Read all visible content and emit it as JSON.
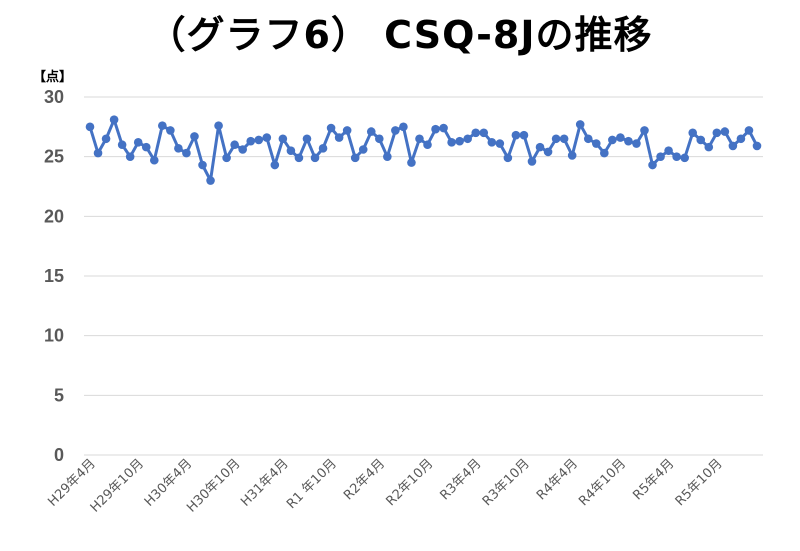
{
  "chart_data": {
    "type": "line",
    "title": "（グラフ6） CSQ-8Jの推移",
    "unit_label": "【点】",
    "xlabel": "",
    "ylabel": "",
    "ylim": [
      0,
      30
    ],
    "yticks": [
      0,
      5,
      10,
      15,
      20,
      25,
      30
    ],
    "grid": true,
    "legend": "none",
    "categories": [
      "H29年4月",
      "",
      "",
      "",
      "",
      "",
      "H29年10月",
      "",
      "",
      "",
      "",
      "",
      "H30年4月",
      "",
      "",
      "",
      "",
      "",
      "H30年10月",
      "",
      "",
      "",
      "",
      "",
      "H31年4月",
      "",
      "",
      "",
      "",
      "",
      "R1 年10月",
      "",
      "",
      "",
      "",
      "",
      "R2年4月",
      "",
      "",
      "",
      "",
      "",
      "R2年10月",
      "",
      "",
      "",
      "",
      "",
      "R3年4月",
      "",
      "",
      "",
      "",
      "",
      "R3年10月",
      "",
      "",
      "",
      "",
      "",
      "R4年4月",
      "",
      "",
      "",
      "",
      "",
      "R4年10月",
      "",
      "",
      "",
      "",
      "",
      "R5年4月",
      "",
      "",
      "",
      "",
      "",
      "R5年10月",
      "",
      "",
      "",
      "",
      ""
    ],
    "series": [
      {
        "color": "#4472C4",
        "values": [
          27.5,
          25.3,
          26.5,
          28.1,
          26.0,
          25.0,
          26.2,
          25.8,
          24.7,
          27.6,
          27.2,
          25.7,
          25.3,
          26.7,
          24.3,
          23.0,
          27.6,
          24.9,
          26.0,
          25.6,
          26.3,
          26.4,
          26.6,
          24.3,
          26.5,
          25.5,
          24.9,
          26.5,
          24.9,
          25.7,
          27.4,
          26.6,
          27.2,
          24.9,
          25.6,
          27.1,
          26.5,
          25.0,
          27.2,
          27.5,
          24.5,
          26.5,
          26.0,
          27.3,
          27.4,
          26.2,
          26.3,
          26.5,
          27.0,
          27.0,
          26.2,
          26.1,
          24.9,
          26.8,
          26.8,
          24.6,
          25.8,
          25.4,
          26.5,
          26.5,
          25.1,
          27.7,
          26.5,
          26.1,
          25.3,
          26.4,
          26.6,
          26.3,
          26.1,
          27.2,
          24.3,
          25.0,
          25.5,
          25.0,
          24.9,
          27.0,
          26.4,
          25.8,
          27.0,
          27.1,
          25.9,
          26.5,
          27.2,
          25.9
        ]
      }
    ]
  }
}
